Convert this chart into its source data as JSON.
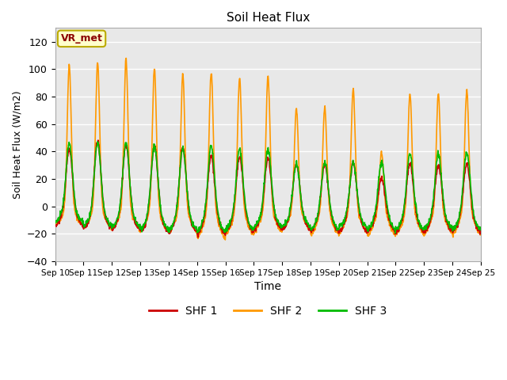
{
  "title": "Soil Heat Flux",
  "xlabel": "Time",
  "ylabel": "Soil Heat Flux (W/m2)",
  "ylim": [
    -40,
    130
  ],
  "yticks": [
    -40,
    -20,
    0,
    20,
    40,
    60,
    80,
    100,
    120
  ],
  "xlim": [
    0,
    15
  ],
  "xtick_labels": [
    "Sep 10",
    "Sep 11",
    "Sep 12",
    "Sep 13",
    "Sep 14",
    "Sep 15",
    "Sep 16",
    "Sep 17",
    "Sep 18",
    "Sep 19",
    "Sep 20",
    "Sep 21",
    "Sep 22",
    "Sep 23",
    "Sep 24",
    "Sep 25"
  ],
  "legend_labels": [
    "SHF 1",
    "SHF 2",
    "SHF 3"
  ],
  "shf1_color": "#cc0000",
  "shf2_color": "#ff9900",
  "shf3_color": "#00bb00",
  "annotation_text": "VR_met",
  "annotation_color": "#8b0000",
  "annotation_bg": "#ffffcc",
  "annotation_border": "#bbaa00",
  "plot_bg_color": "#e8e8e8",
  "fig_bg_color": "#ffffff",
  "grid_color": "#ffffff",
  "line_width": 1.2,
  "shf2_peaks": [
    103,
    105,
    107,
    100,
    96,
    98,
    94,
    95,
    71,
    72,
    85,
    39,
    82,
    82,
    85
  ],
  "shf1_peaks": [
    42,
    48,
    45,
    44,
    43,
    37,
    36,
    35,
    31,
    30,
    32,
    20,
    31,
    30,
    31
  ],
  "shf3_peaks": [
    46,
    47,
    46,
    44,
    42,
    44,
    42,
    42,
    31,
    32,
    32,
    32,
    38,
    38,
    40
  ],
  "shf2_troughs": [
    -15,
    -17,
    -18,
    -20,
    -20,
    -25,
    -22,
    -20,
    -18,
    -22,
    -20,
    -23,
    -22,
    -21,
    -22
  ],
  "shf1_troughs": [
    -15,
    -17,
    -18,
    -20,
    -20,
    -22,
    -20,
    -18,
    -18,
    -20,
    -20,
    -20,
    -20,
    -20,
    -20
  ],
  "shf3_troughs": [
    -12,
    -15,
    -16,
    -18,
    -18,
    -20,
    -18,
    -16,
    -16,
    -18,
    -16,
    -18,
    -18,
    -17,
    -18
  ]
}
